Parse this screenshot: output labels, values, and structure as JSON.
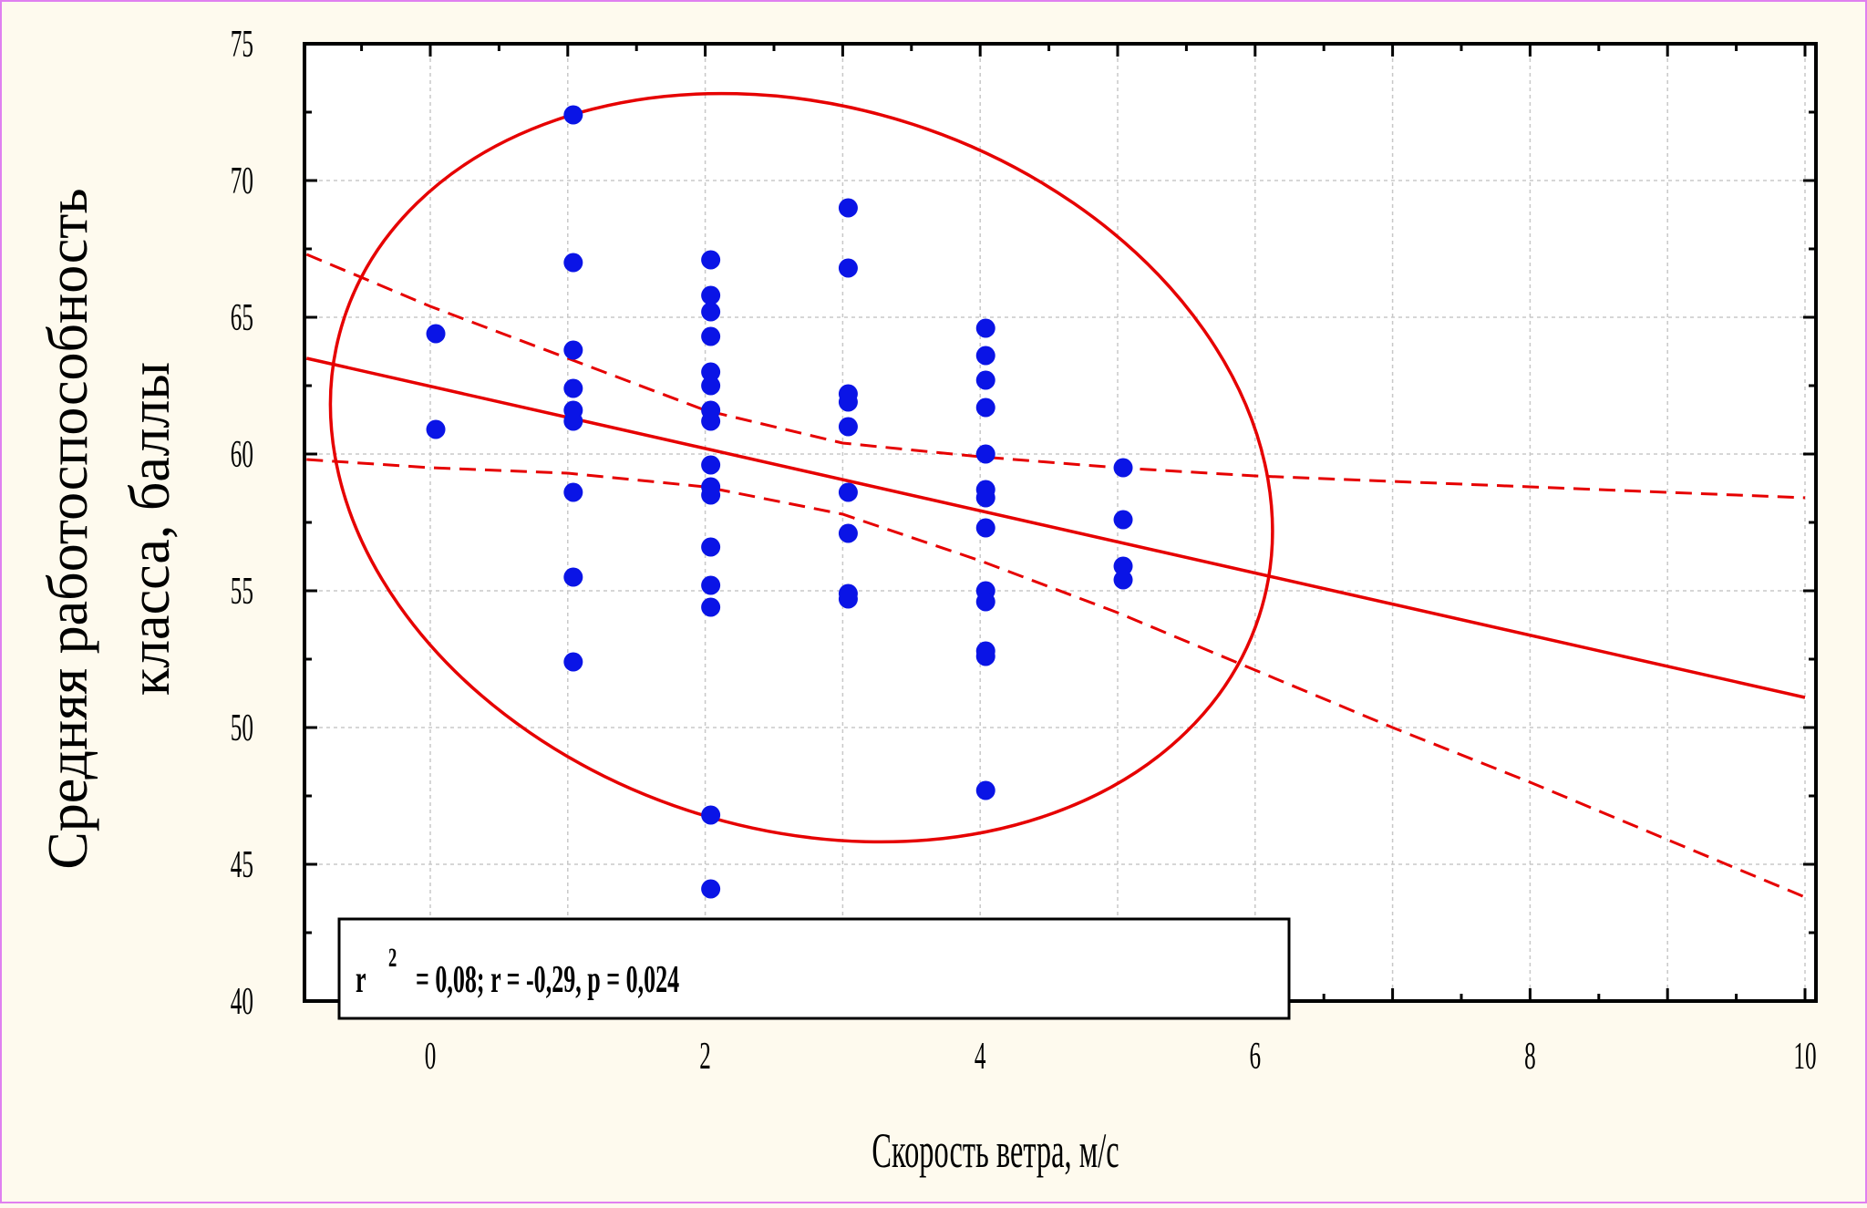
{
  "chart_data": {
    "type": "scatter",
    "xlabel": "Скорость ветра, м/с",
    "ylabel_lines": [
      "Средняя работоспособность",
      "класса, баллы"
    ],
    "xlim": [
      -0.9,
      10.1
    ],
    "ylim": [
      40,
      75
    ],
    "xticks": [
      0,
      2,
      4,
      6,
      8,
      10
    ],
    "yticks": [
      40,
      45,
      50,
      55,
      60,
      65,
      70,
      75
    ],
    "grid": true,
    "annotation": {
      "r_label": "r",
      "sup": "2",
      "rest": "= 0,08;  r = -0,29, p = 0,024"
    },
    "points": [
      {
        "x": 0,
        "y": 64.4
      },
      {
        "x": 0,
        "y": 60.9
      },
      {
        "x": 1,
        "y": 72.4
      },
      {
        "x": 1,
        "y": 67.0
      },
      {
        "x": 1,
        "y": 63.8
      },
      {
        "x": 1,
        "y": 62.4
      },
      {
        "x": 1,
        "y": 61.6
      },
      {
        "x": 1,
        "y": 61.2
      },
      {
        "x": 1,
        "y": 58.6
      },
      {
        "x": 1,
        "y": 55.5
      },
      {
        "x": 1,
        "y": 52.4
      },
      {
        "x": 2,
        "y": 67.1
      },
      {
        "x": 2,
        "y": 65.8
      },
      {
        "x": 2,
        "y": 65.2
      },
      {
        "x": 2,
        "y": 64.3
      },
      {
        "x": 2,
        "y": 63.0
      },
      {
        "x": 2,
        "y": 62.5
      },
      {
        "x": 2,
        "y": 61.6
      },
      {
        "x": 2,
        "y": 61.2
      },
      {
        "x": 2,
        "y": 59.6
      },
      {
        "x": 2,
        "y": 58.8
      },
      {
        "x": 2,
        "y": 58.5
      },
      {
        "x": 2,
        "y": 56.6
      },
      {
        "x": 2,
        "y": 55.2
      },
      {
        "x": 2,
        "y": 54.4
      },
      {
        "x": 2,
        "y": 46.8
      },
      {
        "x": 2,
        "y": 44.1
      },
      {
        "x": 3,
        "y": 69.0
      },
      {
        "x": 3,
        "y": 66.8
      },
      {
        "x": 3,
        "y": 62.2
      },
      {
        "x": 3,
        "y": 61.9
      },
      {
        "x": 3,
        "y": 61.0
      },
      {
        "x": 3,
        "y": 58.6
      },
      {
        "x": 3,
        "y": 57.1
      },
      {
        "x": 3,
        "y": 54.9
      },
      {
        "x": 3,
        "y": 54.7
      },
      {
        "x": 4,
        "y": 64.6
      },
      {
        "x": 4,
        "y": 63.6
      },
      {
        "x": 4,
        "y": 62.7
      },
      {
        "x": 4,
        "y": 61.7
      },
      {
        "x": 4,
        "y": 60.0
      },
      {
        "x": 4,
        "y": 58.7
      },
      {
        "x": 4,
        "y": 58.4
      },
      {
        "x": 4,
        "y": 57.3
      },
      {
        "x": 4,
        "y": 55.0
      },
      {
        "x": 4,
        "y": 54.6
      },
      {
        "x": 4,
        "y": 52.8
      },
      {
        "x": 4,
        "y": 52.6
      },
      {
        "x": 4,
        "y": 47.7
      },
      {
        "x": 5,
        "y": 59.5
      },
      {
        "x": 5,
        "y": 57.6
      },
      {
        "x": 5,
        "y": 55.9
      },
      {
        "x": 5,
        "y": 55.4
      }
    ],
    "regression": {
      "x": [
        -0.9,
        10.0
      ],
      "y": [
        63.5,
        51.1
      ]
    },
    "confidence_upper": {
      "x": [
        -0.9,
        0,
        1,
        2,
        3,
        4,
        5,
        6,
        7,
        8,
        9,
        10
      ],
      "y": [
        67.3,
        65.4,
        63.5,
        61.6,
        60.4,
        59.9,
        59.5,
        59.2,
        59.0,
        58.8,
        58.6,
        58.4
      ]
    },
    "confidence_lower": {
      "x": [
        -0.9,
        0,
        1,
        2,
        3,
        4,
        5,
        6,
        7,
        8,
        9,
        10
      ],
      "y": [
        59.8,
        59.5,
        59.3,
        58.8,
        57.8,
        56.1,
        54.2,
        52.1,
        50.0,
        48.0,
        45.9,
        43.8
      ]
    },
    "ellipse": {
      "cx": 2.7,
      "cy": 59.5,
      "rx": 3.5,
      "ry": 13.2,
      "rotation_deg": 18
    },
    "colors": {
      "points": "#0a14e6",
      "lines": "#e60000",
      "background": "#fefaee",
      "grid": "#c8c8c8",
      "plot_area": "#ffffff"
    }
  }
}
